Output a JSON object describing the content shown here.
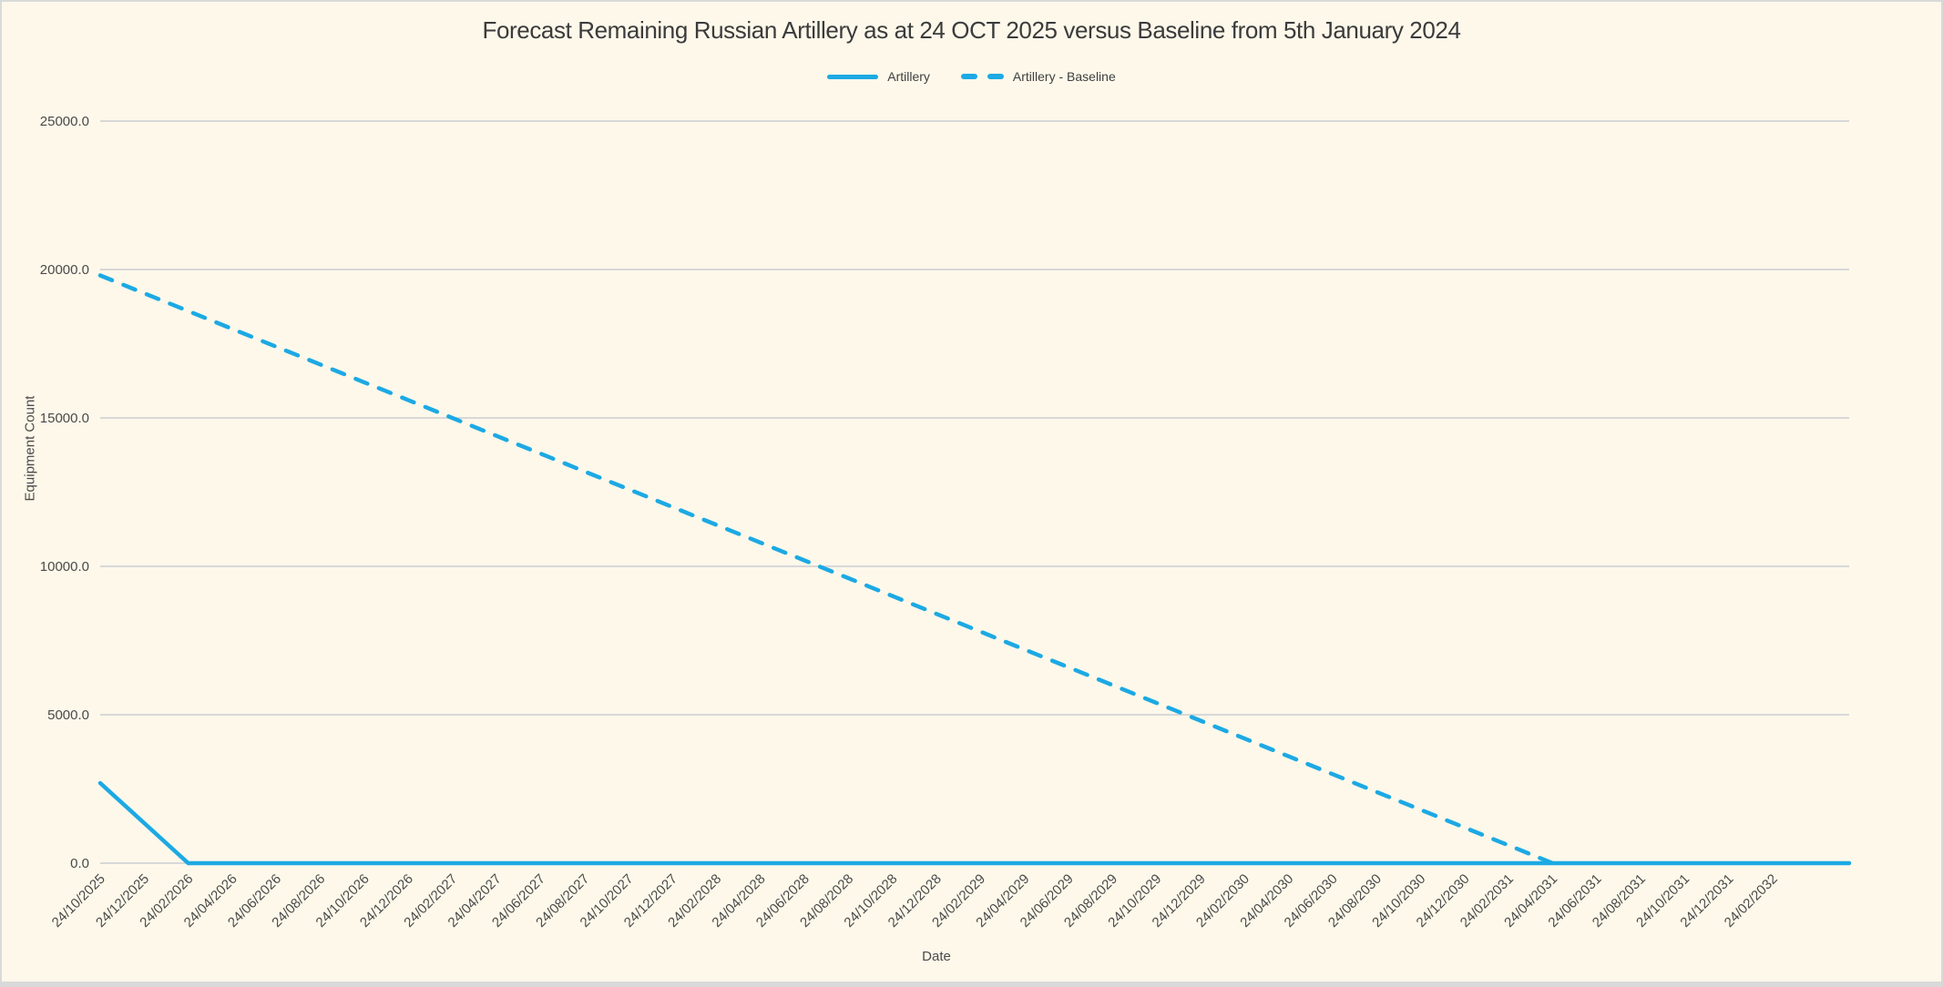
{
  "figure": {
    "background_color": "#FDF8EA",
    "border_color": "#D9D9D9",
    "accent_color": "#1CA9E4",
    "gridline_color": "#D8D8D8",
    "text_color": "#4A4A4A"
  },
  "chart_data": {
    "type": "line",
    "title": "Forecast Remaining Russian Artillery as at 24 OCT 2025 versus Baseline from 5th January 2024",
    "xlabel": "Date",
    "ylabel": "Equipment Count",
    "ylim": [
      0,
      25000
    ],
    "y_tick_values": [
      0,
      5000,
      10000,
      15000,
      20000,
      25000
    ],
    "y_tick_labels": [
      "0.0",
      "5000.0",
      "10000.0",
      "15000.0",
      "20000.0",
      "25000.0"
    ],
    "grid": "horizontal-only",
    "legend_position": "top-center",
    "categories": [
      "24/10/2025",
      "24/12/2025",
      "24/02/2026",
      "24/04/2026",
      "24/06/2026",
      "24/08/2026",
      "24/10/2026",
      "24/12/2026",
      "24/02/2027",
      "24/04/2027",
      "24/06/2027",
      "24/08/2027",
      "24/10/2027",
      "24/12/2027",
      "24/02/2028",
      "24/04/2028",
      "24/06/2028",
      "24/08/2028",
      "24/10/2028",
      "24/12/2028",
      "24/02/2029",
      "24/04/2029",
      "24/06/2029",
      "24/08/2029",
      "24/10/2029",
      "24/12/2029",
      "24/02/2030",
      "24/04/2030",
      "24/06/2030",
      "24/08/2030",
      "24/10/2030",
      "24/12/2030",
      "24/02/2031",
      "24/04/2031",
      "24/06/2031",
      "24/08/2031",
      "24/10/2031",
      "24/12/2031",
      "24/02/2032"
    ],
    "series": [
      {
        "name": "Artillery",
        "line_style": "solid",
        "color": "#1CA9E4",
        "extend_to_plot_edge": true,
        "values": [
          2700,
          1350,
          0,
          0,
          0,
          0,
          0,
          0,
          0,
          0,
          0,
          0,
          0,
          0,
          0,
          0,
          0,
          0,
          0,
          0,
          0,
          0,
          0,
          0,
          0,
          0,
          0,
          0,
          0,
          0,
          0,
          0,
          0,
          0,
          0,
          0,
          0,
          0,
          0
        ]
      },
      {
        "name": "Artillery - Baseline",
        "line_style": "dashed",
        "color": "#1CA9E4",
        "extend_to_plot_edge": false,
        "values": [
          19800,
          19200,
          18600,
          18000,
          17400,
          16800,
          16200,
          15600,
          15000,
          14400,
          13800,
          13200,
          12600,
          12000,
          11400,
          10800,
          10200,
          9600,
          9000,
          8400,
          7800,
          7200,
          6600,
          6000,
          5400,
          4800,
          4200,
          3600,
          3000,
          2400,
          1800,
          1200,
          600,
          0,
          null,
          null,
          null,
          null,
          null
        ]
      }
    ]
  }
}
